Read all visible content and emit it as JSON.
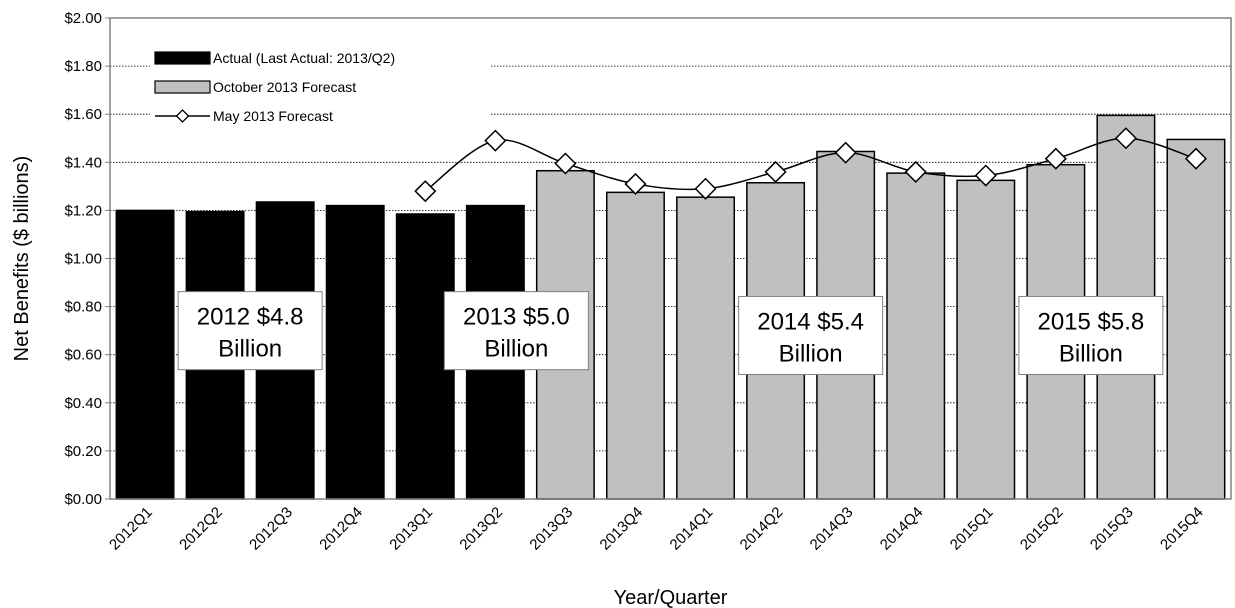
{
  "chart_data": {
    "type": "bar",
    "title": "",
    "xlabel": "Year/Quarter",
    "ylabel": "Net Benefits ($ billions)",
    "ylim": [
      0,
      2
    ],
    "ytick_step": 0.2,
    "grid": "horizontal",
    "legend_position": "top-left",
    "categories": [
      "2012Q1",
      "2012Q2",
      "2012Q3",
      "2012Q4",
      "2013Q1",
      "2013Q2",
      "2013Q3",
      "2013Q4",
      "2014Q1",
      "2014Q2",
      "2014Q3",
      "2014Q4",
      "2015Q1",
      "2015Q2",
      "2015Q3",
      "2015Q4"
    ],
    "series": [
      {
        "name": "Actual (Last Actual: 2013/Q2)",
        "kind": "bar",
        "color": "#000000",
        "values": [
          1.2,
          1.195,
          1.235,
          1.22,
          1.185,
          1.22,
          null,
          null,
          null,
          null,
          null,
          null,
          null,
          null,
          null,
          null
        ]
      },
      {
        "name": "October 2013 Forecast",
        "kind": "bar",
        "color": "#c0c0c0",
        "values": [
          null,
          null,
          null,
          null,
          null,
          null,
          1.365,
          1.275,
          1.255,
          1.315,
          1.445,
          1.355,
          1.325,
          1.39,
          1.595,
          1.495
        ]
      },
      {
        "name": "May 2013 Forecast",
        "kind": "line",
        "color": "#000000",
        "marker": "diamond",
        "values": [
          null,
          null,
          null,
          null,
          1.28,
          1.49,
          1.395,
          1.31,
          1.29,
          1.36,
          1.44,
          1.36,
          1.345,
          1.415,
          1.5,
          1.415
        ]
      }
    ],
    "annotations": [
      {
        "line1": "2012 $4.8",
        "line2": "Billion",
        "category_center": 1.5,
        "y": 0.7
      },
      {
        "line1": "2013 $5.0",
        "line2": "Billion",
        "category_center": 5.3,
        "y": 0.7
      },
      {
        "line1": "2014 $5.4",
        "line2": "Billion",
        "category_center": 9.5,
        "y": 0.68
      },
      {
        "line1": "2015 $5.8",
        "line2": "Billion",
        "category_center": 13.5,
        "y": 0.68
      }
    ]
  }
}
